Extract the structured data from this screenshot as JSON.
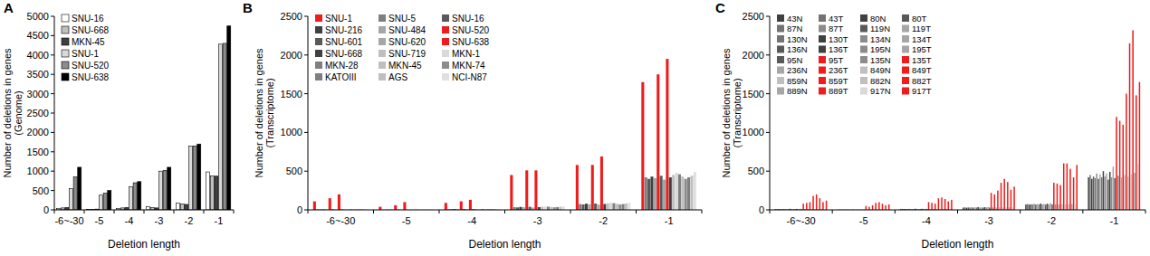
{
  "chart_data": [
    {
      "type": "bar",
      "title": "A",
      "y_label": "Number of deletions in genes (Genome)",
      "x_label": "Deletion length",
      "categories": [
        "-6~-30",
        "-5",
        "-4",
        "-3",
        "-2",
        "-1"
      ],
      "ylim": [
        0,
        5000
      ],
      "yticks": [
        0,
        500,
        1000,
        1500,
        2000,
        2500,
        3000,
        3500,
        4000,
        4500,
        5000
      ],
      "legend": "upper left",
      "series": [
        {
          "name": "SNU-16",
          "color": "#ffffff",
          "values": [
            40,
            10,
            40,
            80,
            180,
            980
          ]
        },
        {
          "name": "SNU-668",
          "color": "#bfbfbf",
          "values": [
            50,
            15,
            50,
            60,
            150,
            880
          ]
        },
        {
          "name": "MKN-45",
          "color": "#404040",
          "values": [
            60,
            20,
            60,
            50,
            140,
            870
          ]
        },
        {
          "name": "SNU-1",
          "color": "#d9d9d9",
          "values": [
            550,
            380,
            600,
            1000,
            1650,
            4280
          ]
        },
        {
          "name": "SNU-520",
          "color": "#8c8c8c",
          "values": [
            850,
            430,
            700,
            1020,
            1650,
            4300
          ]
        },
        {
          "name": "SNU-638",
          "color": "#000000",
          "values": [
            1100,
            500,
            730,
            1100,
            1700,
            4750
          ]
        }
      ]
    },
    {
      "type": "bar",
      "title": "B",
      "y_label": "Number of deletions in genes (Transcriptome)",
      "x_label": "Deletion length",
      "categories": [
        "-6~-30",
        "-5",
        "-4",
        "-3",
        "-2",
        "-1"
      ],
      "ylim": [
        0,
        2500
      ],
      "yticks": [
        0,
        500,
        1000,
        1500,
        2000,
        2500
      ],
      "legend": "upper left",
      "series": [
        {
          "name": "SNU-1",
          "color": "#ee1c1c",
          "values": [
            110,
            40,
            90,
            450,
            580,
            1650
          ]
        },
        {
          "name": "SNU-5",
          "color": "#7f7f7f",
          "values": [
            6,
            2,
            9,
            35,
            75,
            420
          ]
        },
        {
          "name": "SNU-16",
          "color": "#595959",
          "values": [
            5,
            2,
            8,
            32,
            70,
            400
          ]
        },
        {
          "name": "SNU-216",
          "color": "#404040",
          "values": [
            6,
            3,
            10,
            38,
            80,
            430
          ]
        },
        {
          "name": "SNU-484",
          "color": "#a6a6a6",
          "values": [
            5,
            2,
            8,
            34,
            72,
            410
          ]
        },
        {
          "name": "SNU-520",
          "color": "#ee1c1c",
          "values": [
            150,
            60,
            110,
            510,
            580,
            1750
          ]
        },
        {
          "name": "SNU-601",
          "color": "#595959",
          "values": [
            7,
            3,
            11,
            40,
            82,
            440
          ]
        },
        {
          "name": "SNU-620",
          "color": "#a6a6a6",
          "values": [
            4,
            2,
            7,
            30,
            68,
            390
          ]
        },
        {
          "name": "SNU-638",
          "color": "#ee1c1c",
          "values": [
            200,
            100,
            130,
            510,
            690,
            1950
          ]
        },
        {
          "name": "SNU-668",
          "color": "#404040",
          "values": [
            6,
            2,
            9,
            36,
            76,
            420
          ]
        },
        {
          "name": "SNU-719",
          "color": "#bfbfbf",
          "values": [
            7,
            3,
            10,
            40,
            85,
            450
          ]
        },
        {
          "name": "MKN-1",
          "color": "#d9d9d9",
          "values": [
            8,
            3,
            12,
            42,
            90,
            480
          ]
        },
        {
          "name": "MKN-28",
          "color": "#7f7f7f",
          "values": [
            7,
            3,
            11,
            41,
            86,
            460
          ]
        },
        {
          "name": "MKN-45",
          "color": "#bfbfbf",
          "values": [
            6,
            2,
            9,
            37,
            78,
            430
          ]
        },
        {
          "name": "MKN-74",
          "color": "#8c8c8c",
          "values": [
            5,
            2,
            8,
            33,
            70,
            400
          ]
        },
        {
          "name": "KATOIII",
          "color": "#7f7f7f",
          "values": [
            6,
            2,
            9,
            36,
            75,
            420
          ]
        },
        {
          "name": "AGS",
          "color": "#bfbfbf",
          "values": [
            7,
            3,
            10,
            39,
            82,
            440
          ]
        },
        {
          "name": "NCI-N87",
          "color": "#e0e0e0",
          "values": [
            8,
            3,
            12,
            44,
            92,
            490
          ]
        }
      ]
    },
    {
      "type": "bar",
      "title": "C",
      "y_label": "Number of deletions in genes (Transcriptome)",
      "x_label": "Deletion length",
      "categories": [
        "-6~-30",
        "-5",
        "-4",
        "-3",
        "-2",
        "-1"
      ],
      "ylim": [
        0,
        2500
      ],
      "yticks": [
        0,
        500,
        1000,
        1500,
        2000,
        2500
      ],
      "legend": "upper left",
      "series": [
        {
          "name": "43N",
          "color": "#404040",
          "values": [
            10,
            3,
            12,
            30,
            70,
            420
          ]
        },
        {
          "name": "43T",
          "color": "#737373",
          "values": [
            12,
            4,
            13,
            32,
            75,
            450
          ]
        },
        {
          "name": "80N",
          "color": "#404040",
          "values": [
            9,
            3,
            11,
            28,
            68,
            400
          ]
        },
        {
          "name": "80T",
          "color": "#595959",
          "values": [
            11,
            4,
            12,
            31,
            72,
            430
          ]
        },
        {
          "name": "87N",
          "color": "#737373",
          "values": [
            10,
            3,
            12,
            30,
            70,
            410
          ]
        },
        {
          "name": "87T",
          "color": "#8c8c8c",
          "values": [
            13,
            4,
            14,
            34,
            78,
            470
          ]
        },
        {
          "name": "119N",
          "color": "#595959",
          "values": [
            9,
            3,
            11,
            29,
            69,
            400
          ]
        },
        {
          "name": "119T",
          "color": "#a6a6a6",
          "values": [
            12,
            4,
            13,
            33,
            76,
            460
          ]
        },
        {
          "name": "130N",
          "color": "#737373",
          "values": [
            10,
            3,
            12,
            30,
            70,
            420
          ]
        },
        {
          "name": "130T",
          "color": "#404040",
          "values": [
            14,
            5,
            15,
            36,
            82,
            500
          ]
        },
        {
          "name": "134N",
          "color": "#8c8c8c",
          "values": [
            10,
            3,
            12,
            30,
            71,
            430
          ]
        },
        {
          "name": "134T",
          "color": "#a6a6a6",
          "values": [
            12,
            4,
            13,
            33,
            77,
            470
          ]
        },
        {
          "name": "136N",
          "color": "#595959",
          "values": [
            9,
            3,
            11,
            29,
            68,
            390
          ]
        },
        {
          "name": "136T",
          "color": "#404040",
          "values": [
            13,
            4,
            14,
            35,
            80,
            490
          ]
        },
        {
          "name": "195N",
          "color": "#8c8c8c",
          "values": [
            10,
            3,
            12,
            31,
            71,
            420
          ]
        },
        {
          "name": "195T",
          "color": "#a6a6a6",
          "values": [
            15,
            5,
            16,
            38,
            88,
            560
          ]
        },
        {
          "name": "95N",
          "color": "#595959",
          "values": [
            10,
            3,
            12,
            30,
            70,
            410
          ]
        },
        {
          "name": "95T",
          "color": "#ee1c1c",
          "values": [
            80,
            50,
            100,
            220,
            350,
            1200
          ]
        },
        {
          "name": "135N",
          "color": "#8c8c8c",
          "values": [
            11,
            3,
            12,
            31,
            72,
            440
          ]
        },
        {
          "name": "135T",
          "color": "#ee1c1c",
          "values": [
            90,
            40,
            90,
            200,
            340,
            1150
          ]
        },
        {
          "name": "236N",
          "color": "#a6a6a6",
          "values": [
            10,
            3,
            12,
            30,
            70,
            420
          ]
        },
        {
          "name": "236T",
          "color": "#ee1c1c",
          "values": [
            100,
            60,
            80,
            250,
            320,
            1100
          ]
        },
        {
          "name": "849N",
          "color": "#bfbfbf",
          "values": [
            11,
            4,
            13,
            32,
            74,
            450
          ]
        },
        {
          "name": "849T",
          "color": "#ee1c1c",
          "values": [
            180,
            90,
            150,
            350,
            600,
            1500
          ]
        },
        {
          "name": "859N",
          "color": "#bfbfbf",
          "values": [
            10,
            3,
            12,
            30,
            70,
            430
          ]
        },
        {
          "name": "859T",
          "color": "#ee1c1c",
          "values": [
            200,
            100,
            160,
            400,
            600,
            2150
          ]
        },
        {
          "name": "882N",
          "color": "#bfbfbf",
          "values": [
            11,
            4,
            12,
            31,
            73,
            460
          ]
        },
        {
          "name": "882T",
          "color": "#ee1c1c",
          "values": [
            150,
            80,
            140,
            360,
            530,
            2320
          ]
        },
        {
          "name": "889N",
          "color": "#a6a6a6",
          "values": [
            12,
            4,
            13,
            33,
            76,
            480
          ]
        },
        {
          "name": "889T",
          "color": "#ee1c1c",
          "values": [
            100,
            60,
            110,
            260,
            420,
            1480
          ]
        },
        {
          "name": "917N",
          "color": "#d9d9d9",
          "values": [
            12,
            4,
            14,
            34,
            80,
            590
          ]
        },
        {
          "name": "917T",
          "color": "#ee1c1c",
          "values": [
            120,
            70,
            130,
            300,
            580,
            1650
          ]
        }
      ]
    }
  ]
}
